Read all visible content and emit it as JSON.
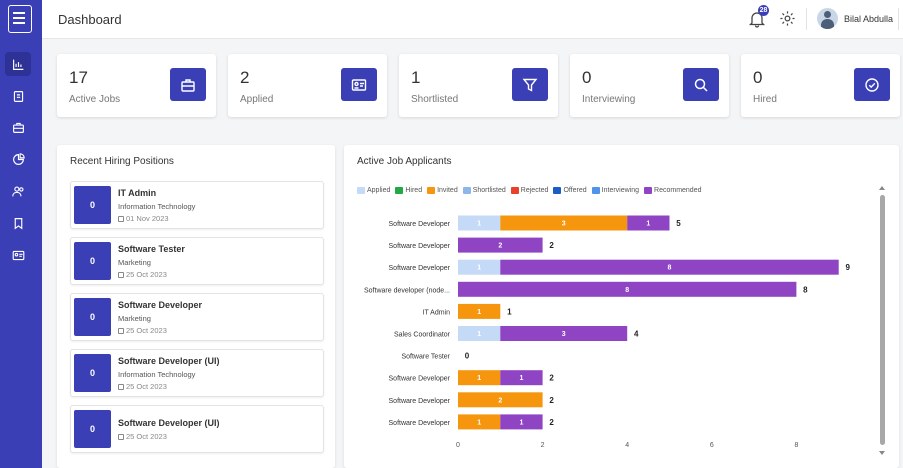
{
  "header": {
    "title": "Dashboard",
    "notification_count": "28",
    "user_name": "Bilal Abdulla"
  },
  "sidebar": {
    "items": [
      {
        "icon": "chart-icon",
        "active": true
      },
      {
        "icon": "document-icon",
        "active": false
      },
      {
        "icon": "briefcase-icon",
        "active": false
      },
      {
        "icon": "pie-chart-icon",
        "active": false
      },
      {
        "icon": "users-icon",
        "active": false
      },
      {
        "icon": "bookmark-icon",
        "active": false
      },
      {
        "icon": "id-card-icon",
        "active": false
      }
    ]
  },
  "stats": [
    {
      "value": "17",
      "label": "Active Jobs",
      "icon": "briefcase-icon"
    },
    {
      "value": "2",
      "label": "Applied",
      "icon": "id-card-icon"
    },
    {
      "value": "1",
      "label": "Shortlisted",
      "icon": "filter-icon"
    },
    {
      "value": "0",
      "label": "Interviewing",
      "icon": "search-icon"
    },
    {
      "value": "0",
      "label": "Hired",
      "icon": "check-circle-icon"
    }
  ],
  "recent": {
    "title": "Recent Hiring Positions",
    "items": [
      {
        "count": "0",
        "title": "IT Admin",
        "dept": "Information Technology",
        "date": "01 Nov 2023"
      },
      {
        "count": "0",
        "title": "Software Tester",
        "dept": "Marketing",
        "date": "25 Oct 2023"
      },
      {
        "count": "0",
        "title": "Software Developer",
        "dept": "Marketing",
        "date": "25 Oct 2023"
      },
      {
        "count": "0",
        "title": "Software Developer (UI)",
        "dept": "Information Technology",
        "date": "25 Oct 2023"
      },
      {
        "count": "0",
        "title": "Software Developer (UI)",
        "dept": "",
        "date": "25 Oct 2023"
      }
    ]
  },
  "applicants": {
    "title": "Active Job Applicants"
  },
  "chart_data": {
    "type": "bar",
    "orientation": "horizontal",
    "stacked": true,
    "legend_position": "top-left",
    "categories": [
      "Software Developer",
      "Software Developer",
      "Software Developer",
      "Software developer (node...",
      "IT Admin",
      "Sales Coordinator",
      "Software Tester",
      "Software Developer",
      "Software Developer",
      "Software Developer"
    ],
    "series": [
      {
        "name": "Applied",
        "color": "#c5daf6",
        "values": [
          1,
          0,
          1,
          0,
          0,
          1,
          0,
          0,
          0,
          0
        ]
      },
      {
        "name": "Hired",
        "color": "#22a845",
        "values": [
          0,
          0,
          0,
          0,
          0,
          0,
          0,
          0,
          0,
          0
        ]
      },
      {
        "name": "Invited",
        "color": "#f6960f",
        "values": [
          3,
          0,
          0,
          0,
          1,
          0,
          0,
          1,
          2,
          1
        ]
      },
      {
        "name": "Shortlisted",
        "color": "#8bb8e8",
        "values": [
          0,
          0,
          0,
          0,
          0,
          0,
          0,
          0,
          0,
          0
        ]
      },
      {
        "name": "Rejected",
        "color": "#e8402a",
        "values": [
          0,
          0,
          0,
          0,
          0,
          0,
          0,
          0,
          0,
          0
        ]
      },
      {
        "name": "Offered",
        "color": "#1c5cc7",
        "values": [
          0,
          0,
          0,
          0,
          0,
          0,
          0,
          0,
          0,
          0
        ]
      },
      {
        "name": "Interviewing",
        "color": "#4f94e8",
        "values": [
          0,
          0,
          0,
          0,
          0,
          0,
          0,
          0,
          0,
          0
        ]
      },
      {
        "name": "Recommended",
        "color": "#8f44c4",
        "values": [
          1,
          2,
          8,
          8,
          0,
          3,
          0,
          1,
          0,
          1
        ]
      }
    ],
    "totals": [
      5,
      2,
      9,
      8,
      1,
      4,
      0,
      2,
      2,
      2
    ],
    "xlim": [
      0,
      10
    ],
    "xticks": [
      0,
      2,
      4,
      6,
      8
    ],
    "grid": false
  }
}
